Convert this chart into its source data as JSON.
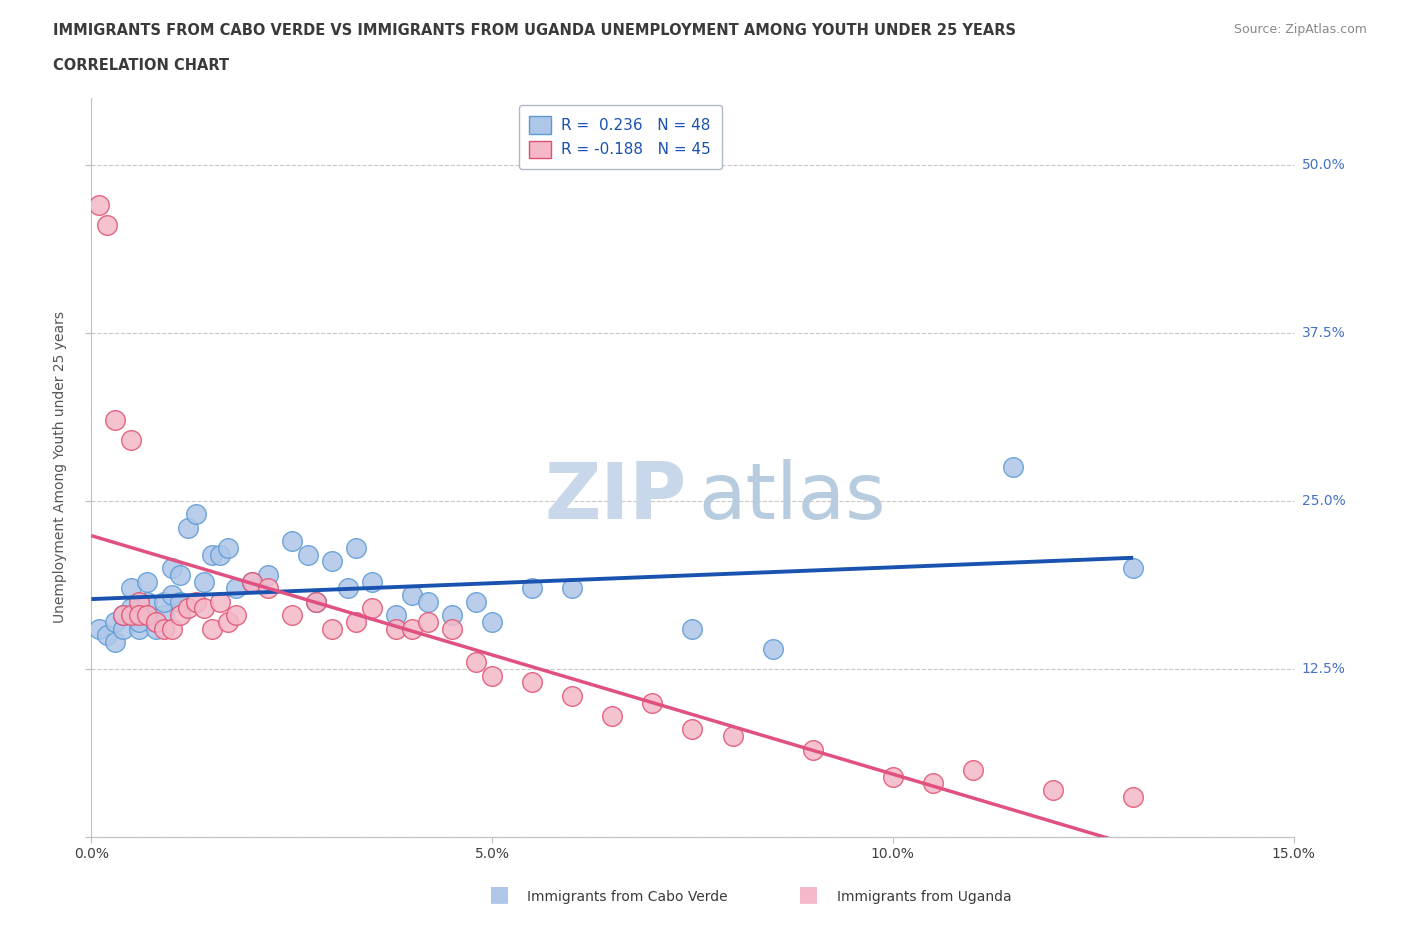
{
  "title_line1": "IMMIGRANTS FROM CABO VERDE VS IMMIGRANTS FROM UGANDA UNEMPLOYMENT AMONG YOUTH UNDER 25 YEARS",
  "title_line2": "CORRELATION CHART",
  "source_text": "Source: ZipAtlas.com",
  "ylabel": "Unemployment Among Youth under 25 years",
  "xlim": [
    0.0,
    0.15
  ],
  "ylim": [
    0.0,
    0.55
  ],
  "xticks": [
    0.0,
    0.05,
    0.1,
    0.15
  ],
  "xticklabels": [
    "0.0%",
    "5.0%",
    "10.0%",
    "15.0%"
  ],
  "yticks": [
    0.0,
    0.125,
    0.25,
    0.375,
    0.5
  ],
  "yticklabels": [
    "",
    "12.5%",
    "25.0%",
    "37.5%",
    "50.0%"
  ],
  "right_ytick_color": "#4472c4",
  "cabo_verde_color": "#aec6e8",
  "cabo_verde_edge": "#5b9bd5",
  "uganda_color": "#f4b8c8",
  "uganda_edge": "#e05070",
  "cabo_verde_R": 0.236,
  "cabo_verde_N": 48,
  "uganda_R": -0.188,
  "uganda_N": 45,
  "watermark_zip_color": "#c8d8ea",
  "watermark_atlas_color": "#b8cce0",
  "legend_label_cabo": "Immigrants from Cabo Verde",
  "legend_label_uganda": "Immigrants from Uganda",
  "cabo_verde_x": [
    0.001,
    0.002,
    0.003,
    0.003,
    0.004,
    0.004,
    0.005,
    0.005,
    0.006,
    0.006,
    0.007,
    0.007,
    0.008,
    0.008,
    0.009,
    0.009,
    0.01,
    0.01,
    0.011,
    0.011,
    0.012,
    0.013,
    0.014,
    0.015,
    0.016,
    0.017,
    0.018,
    0.02,
    0.022,
    0.025,
    0.027,
    0.028,
    0.03,
    0.032,
    0.033,
    0.035,
    0.038,
    0.04,
    0.042,
    0.045,
    0.048,
    0.05,
    0.055,
    0.06,
    0.075,
    0.085,
    0.115,
    0.13
  ],
  "cabo_verde_y": [
    0.155,
    0.15,
    0.145,
    0.16,
    0.155,
    0.165,
    0.17,
    0.185,
    0.155,
    0.16,
    0.19,
    0.175,
    0.16,
    0.155,
    0.165,
    0.175,
    0.18,
    0.2,
    0.175,
    0.195,
    0.23,
    0.24,
    0.19,
    0.21,
    0.21,
    0.215,
    0.185,
    0.19,
    0.195,
    0.22,
    0.21,
    0.175,
    0.205,
    0.185,
    0.215,
    0.19,
    0.165,
    0.18,
    0.175,
    0.165,
    0.175,
    0.16,
    0.185,
    0.185,
    0.155,
    0.14,
    0.275,
    0.2
  ],
  "uganda_x": [
    0.001,
    0.002,
    0.003,
    0.004,
    0.005,
    0.005,
    0.006,
    0.006,
    0.007,
    0.008,
    0.009,
    0.01,
    0.011,
    0.012,
    0.013,
    0.014,
    0.015,
    0.016,
    0.017,
    0.018,
    0.02,
    0.022,
    0.025,
    0.028,
    0.03,
    0.033,
    0.035,
    0.038,
    0.04,
    0.042,
    0.045,
    0.048,
    0.05,
    0.055,
    0.06,
    0.065,
    0.07,
    0.075,
    0.08,
    0.09,
    0.1,
    0.105,
    0.11,
    0.12,
    0.13
  ],
  "uganda_y": [
    0.47,
    0.455,
    0.31,
    0.165,
    0.295,
    0.165,
    0.175,
    0.165,
    0.165,
    0.16,
    0.155,
    0.155,
    0.165,
    0.17,
    0.175,
    0.17,
    0.155,
    0.175,
    0.16,
    0.165,
    0.19,
    0.185,
    0.165,
    0.175,
    0.155,
    0.16,
    0.17,
    0.155,
    0.155,
    0.16,
    0.155,
    0.13,
    0.12,
    0.115,
    0.105,
    0.09,
    0.1,
    0.08,
    0.075,
    0.065,
    0.045,
    0.04,
    0.05,
    0.035,
    0.03
  ]
}
